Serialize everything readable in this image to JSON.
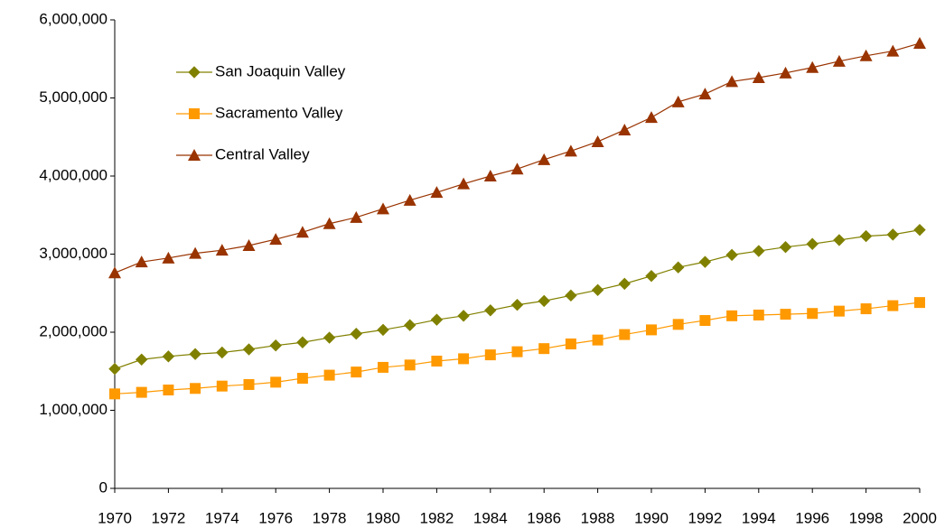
{
  "chart_data": {
    "type": "line",
    "x": [
      1970,
      1971,
      1972,
      1973,
      1974,
      1975,
      1976,
      1977,
      1978,
      1979,
      1980,
      1981,
      1982,
      1983,
      1984,
      1985,
      1986,
      1987,
      1988,
      1989,
      1990,
      1991,
      1992,
      1993,
      1994,
      1995,
      1996,
      1997,
      1998,
      1999,
      2000
    ],
    "xlim": [
      1970,
      2000
    ],
    "xticks": [
      1970,
      1972,
      1974,
      1976,
      1978,
      1980,
      1982,
      1984,
      1986,
      1988,
      1990,
      1992,
      1994,
      1996,
      1998,
      2000
    ],
    "ylim": [
      0,
      6000000
    ],
    "yticks": [
      0,
      {
        "value": 1000000,
        "label": "1,000,000"
      },
      {
        "value": 2000000,
        "label": "2,000,000"
      },
      {
        "value": 3000000,
        "label": "3,000,000"
      },
      {
        "value": 4000000,
        "label": "4,000,000"
      },
      {
        "value": 5000000,
        "label": "5,000,000"
      },
      {
        "value": 6000000,
        "label": "6,000,000"
      }
    ],
    "grid": false,
    "legend": "upper left",
    "series": [
      {
        "name": "San Joaquin Valley",
        "color": "#808000",
        "marker": "diamond",
        "values": [
          1530000,
          1650000,
          1690000,
          1720000,
          1740000,
          1780000,
          1830000,
          1870000,
          1930000,
          1980000,
          2030000,
          2090000,
          2160000,
          2210000,
          2280000,
          2350000,
          2400000,
          2470000,
          2540000,
          2620000,
          2720000,
          2830000,
          2900000,
          2990000,
          3040000,
          3090000,
          3130000,
          3180000,
          3230000,
          3250000,
          3310000
        ]
      },
      {
        "name": "Sacramento Valley",
        "color": "#ff9900",
        "marker": "square",
        "values": [
          1210000,
          1230000,
          1260000,
          1280000,
          1310000,
          1330000,
          1360000,
          1410000,
          1450000,
          1490000,
          1550000,
          1580000,
          1630000,
          1660000,
          1710000,
          1750000,
          1790000,
          1850000,
          1900000,
          1970000,
          2030000,
          2100000,
          2150000,
          2210000,
          2220000,
          2230000,
          2240000,
          2270000,
          2300000,
          2340000,
          2380000
        ]
      },
      {
        "name": "Central Valley",
        "color": "#993300",
        "marker": "triangle",
        "values": [
          2760000,
          2900000,
          2950000,
          3010000,
          3050000,
          3110000,
          3190000,
          3280000,
          3390000,
          3470000,
          3580000,
          3690000,
          3790000,
          3900000,
          4000000,
          4090000,
          4210000,
          4320000,
          4440000,
          4590000,
          4750000,
          4950000,
          5050000,
          5210000,
          5260000,
          5320000,
          5390000,
          5470000,
          5540000,
          5600000,
          5700000
        ]
      }
    ]
  }
}
